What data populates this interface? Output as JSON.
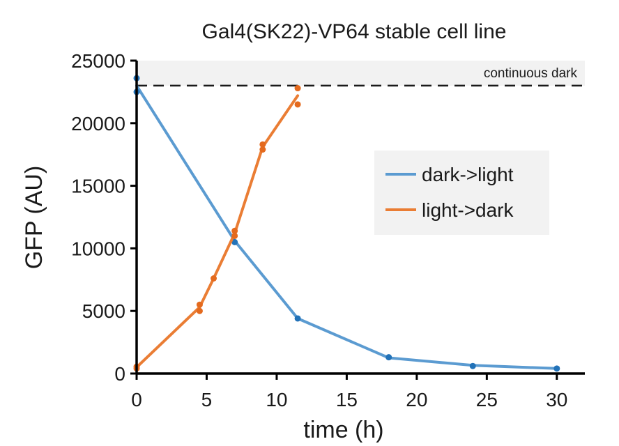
{
  "chart_data": {
    "type": "line",
    "title": "Gal4(SK22)-VP64 stable cell line",
    "xlabel": "time (h)",
    "ylabel": "GFP (AU)",
    "xlim": [
      0,
      32
    ],
    "ylim": [
      0,
      25000
    ],
    "xticks": [
      0,
      5,
      10,
      15,
      20,
      25,
      30
    ],
    "yticks": [
      0,
      5000,
      10000,
      15000,
      20000,
      25000
    ],
    "grid": false,
    "legend_position": "center-right",
    "reference": {
      "label": "continuous dark",
      "y": 23000,
      "band": [
        23000,
        25000
      ],
      "band_color": "#f2f2f2",
      "line_color": "#1a1a1a",
      "style": "dashed"
    },
    "series": [
      {
        "name": "dark->light",
        "color": "#5b9bd1",
        "marker_color": "#2272b8",
        "line": {
          "x": [
            0,
            7,
            11.5,
            18,
            24,
            30
          ],
          "y": [
            23000,
            10600,
            4400,
            1250,
            650,
            400
          ]
        },
        "points": {
          "x": [
            0,
            0,
            7,
            11.5,
            18,
            24,
            30
          ],
          "y": [
            23600,
            22500,
            10500,
            4400,
            1300,
            600,
            400
          ]
        }
      },
      {
        "name": "light->dark",
        "color": "#ea7d34",
        "marker_color": "#e46a1e",
        "line": {
          "x": [
            0,
            4.5,
            5.5,
            7,
            9,
            11.5
          ],
          "y": [
            500,
            5300,
            7600,
            11200,
            18100,
            22200
          ]
        },
        "points": {
          "x": [
            0,
            0,
            4.5,
            4.5,
            5.5,
            7,
            7,
            9,
            9,
            11.5,
            11.5
          ],
          "y": [
            400,
            550,
            5000,
            5500,
            7600,
            11000,
            11400,
            17900,
            18300,
            21500,
            22800
          ]
        }
      }
    ]
  }
}
